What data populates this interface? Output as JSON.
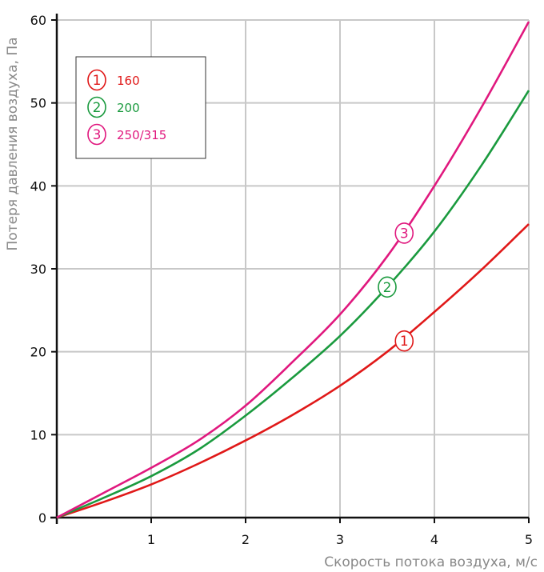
{
  "chart_data": {
    "type": "line",
    "xlabel": "Скорость потока воздуха, м/с",
    "ylabel": "Потеря давления воздуха, Па",
    "xlim": [
      0,
      5
    ],
    "ylim": [
      0,
      60
    ],
    "x_ticks": [
      1,
      2,
      3,
      4,
      5
    ],
    "y_ticks": [
      0,
      10,
      20,
      30,
      40,
      50,
      60
    ],
    "grid": true,
    "legend_position": "top-left",
    "series": [
      {
        "marker": "1",
        "name": "160",
        "color": "#e01818",
        "x": [
          0,
          0.5,
          1,
          1.5,
          2,
          2.5,
          3,
          3.5,
          4,
          4.5,
          5
        ],
        "y": [
          0,
          1.9,
          4.0,
          6.5,
          9.3,
          12.4,
          15.9,
          20.0,
          24.8,
          29.9,
          35.4
        ],
        "label_at": [
          3.68,
          21.3
        ]
      },
      {
        "marker": "2",
        "name": "200",
        "color": "#1a9a3e",
        "x": [
          0,
          0.5,
          1,
          1.5,
          2,
          2.5,
          3,
          3.5,
          4,
          4.5,
          5
        ],
        "y": [
          0,
          2.4,
          5.0,
          8.2,
          12.3,
          16.9,
          21.9,
          27.8,
          34.5,
          42.5,
          51.5
        ],
        "label_at": [
          3.5,
          27.8
        ]
      },
      {
        "marker": "3",
        "name": "250/315",
        "color": "#e0187e",
        "x": [
          0,
          0.5,
          1,
          1.5,
          2,
          2.5,
          3,
          3.5,
          4,
          4.5,
          5
        ],
        "y": [
          0,
          3.0,
          6.0,
          9.3,
          13.5,
          18.8,
          24.5,
          31.5,
          40.0,
          49.5,
          59.8
        ],
        "label_at": [
          3.68,
          34.3
        ]
      }
    ]
  }
}
